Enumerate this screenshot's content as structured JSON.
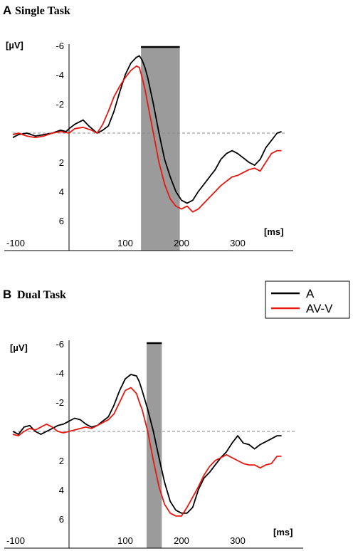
{
  "colors": {
    "A": "#000000",
    "AV-V": "#e8170f",
    "shade": "#9b9b9b",
    "baseline": "#888888"
  },
  "legend": {
    "placement": "upper-right between panels",
    "items": [
      {
        "label": "A",
        "color": "#000000"
      },
      {
        "label": "AV-V",
        "color": "#e8170f"
      }
    ]
  },
  "chart_data": [
    {
      "type": "line",
      "panel_letter": "A",
      "title": "Single Task",
      "ylabel": "[µV]",
      "xlabel": "[ms]",
      "y_inverted": true,
      "xlim": [
        -100,
        385
      ],
      "ylim": [
        -6,
        8
      ],
      "xticks": [
        -100,
        100,
        200,
        300
      ],
      "yticks": [
        -6,
        -4,
        -2,
        2,
        4,
        6
      ],
      "shaded_window_ms": [
        128,
        197
      ],
      "series": [
        {
          "name": "A",
          "color": "#000000",
          "x": [
            -100,
            -90,
            -75,
            -60,
            -45,
            -30,
            -15,
            -5,
            0,
            10,
            25,
            35,
            50,
            60,
            70,
            80,
            90,
            100,
            110,
            120,
            125,
            130,
            135,
            140,
            150,
            160,
            170,
            180,
            190,
            200,
            210,
            220,
            230,
            240,
            250,
            260,
            270,
            280,
            290,
            300,
            310,
            320,
            330,
            340,
            350,
            360,
            370,
            378
          ],
          "y": [
            0.3,
            0.1,
            0.0,
            0.2,
            0.1,
            0.0,
            -0.2,
            -0.1,
            -0.3,
            -0.6,
            -0.9,
            -0.5,
            0.0,
            -0.2,
            -0.5,
            -1.5,
            -2.8,
            -4.0,
            -4.8,
            -5.2,
            -5.3,
            -5.0,
            -4.5,
            -3.8,
            -2.0,
            0.0,
            1.8,
            3.0,
            4.0,
            4.6,
            4.8,
            4.6,
            4.0,
            3.5,
            3.0,
            2.5,
            1.8,
            1.4,
            1.2,
            1.4,
            1.7,
            2.0,
            2.2,
            1.8,
            1.0,
            0.5,
            0.0,
            -0.1
          ]
        },
        {
          "name": "AV-V",
          "color": "#e8170f",
          "x": [
            -100,
            -90,
            -75,
            -60,
            -45,
            -30,
            -15,
            0,
            10,
            25,
            40,
            50,
            60,
            70,
            80,
            90,
            100,
            110,
            120,
            125,
            130,
            135,
            140,
            150,
            160,
            170,
            180,
            190,
            200,
            210,
            220,
            230,
            240,
            250,
            260,
            270,
            280,
            290,
            300,
            310,
            320,
            330,
            340,
            350,
            360,
            370,
            378
          ],
          "y": [
            0.1,
            0.0,
            0.2,
            0.3,
            0.2,
            0.0,
            -0.1,
            0.0,
            -0.3,
            -0.4,
            -0.2,
            0.0,
            -0.6,
            -1.5,
            -2.5,
            -3.2,
            -3.8,
            -4.3,
            -4.6,
            -4.5,
            -3.8,
            -3.0,
            -2.0,
            0.0,
            2.0,
            3.5,
            4.5,
            5.0,
            5.2,
            5.0,
            5.4,
            5.2,
            4.8,
            4.4,
            4.0,
            3.6,
            3.3,
            3.0,
            2.9,
            2.7,
            2.5,
            2.4,
            2.6,
            2.0,
            1.4,
            1.2,
            1.2
          ]
        }
      ]
    },
    {
      "type": "line",
      "panel_letter": "B",
      "title": "Dual Task",
      "ylabel": "[µV]",
      "xlabel": "[ms]",
      "y_inverted": true,
      "xlim": [
        -100,
        385
      ],
      "ylim": [
        -6,
        8
      ],
      "xticks": [
        -100,
        100,
        200,
        300
      ],
      "yticks": [
        -6,
        -4,
        -2,
        2,
        4,
        6
      ],
      "shaded_window_ms": [
        138,
        165
      ],
      "series": [
        {
          "name": "A",
          "color": "#000000",
          "x": [
            -100,
            -90,
            -80,
            -70,
            -60,
            -50,
            -40,
            -30,
            -20,
            -10,
            0,
            10,
            20,
            30,
            40,
            50,
            60,
            70,
            80,
            90,
            100,
            110,
            120,
            125,
            130,
            140,
            150,
            160,
            170,
            180,
            190,
            200,
            210,
            220,
            230,
            240,
            250,
            260,
            270,
            280,
            290,
            300,
            310,
            320,
            330,
            340,
            350,
            360,
            370,
            378
          ],
          "y": [
            0.0,
            0.2,
            -0.3,
            -0.4,
            0.0,
            0.2,
            0.0,
            -0.2,
            -0.4,
            -0.5,
            -0.7,
            -0.9,
            -0.8,
            -0.5,
            -0.3,
            -0.4,
            -0.7,
            -1.0,
            -1.8,
            -2.8,
            -3.6,
            -3.9,
            -3.8,
            -3.4,
            -2.8,
            -1.5,
            0.0,
            1.8,
            3.5,
            4.8,
            5.4,
            5.6,
            5.6,
            5.2,
            4.0,
            3.2,
            2.8,
            2.3,
            1.8,
            1.4,
            0.8,
            0.3,
            0.8,
            0.9,
            1.2,
            0.9,
            0.7,
            0.5,
            0.3,
            0.3
          ]
        },
        {
          "name": "AV-V",
          "color": "#e8170f",
          "x": [
            -100,
            -90,
            -80,
            -70,
            -60,
            -50,
            -40,
            -30,
            -20,
            -10,
            0,
            10,
            20,
            30,
            40,
            50,
            60,
            70,
            80,
            90,
            100,
            110,
            120,
            125,
            130,
            140,
            150,
            160,
            170,
            180,
            190,
            200,
            210,
            220,
            230,
            240,
            250,
            260,
            270,
            280,
            290,
            300,
            310,
            320,
            330,
            340,
            350,
            360,
            370,
            378
          ],
          "y": [
            0.2,
            0.3,
            0.0,
            -0.2,
            -0.1,
            -0.3,
            -0.5,
            -0.3,
            0.0,
            0.1,
            0.0,
            -0.1,
            -0.2,
            -0.3,
            -0.2,
            -0.4,
            -0.6,
            -0.8,
            -1.2,
            -2.0,
            -2.8,
            -3.0,
            -2.6,
            -2.0,
            -1.5,
            0.0,
            2.0,
            3.8,
            5.0,
            5.6,
            5.8,
            5.8,
            5.2,
            4.5,
            3.8,
            3.0,
            2.4,
            2.0,
            1.8,
            1.6,
            1.8,
            2.0,
            2.2,
            2.3,
            2.3,
            2.5,
            2.3,
            2.2,
            1.7,
            1.7
          ]
        }
      ]
    }
  ]
}
